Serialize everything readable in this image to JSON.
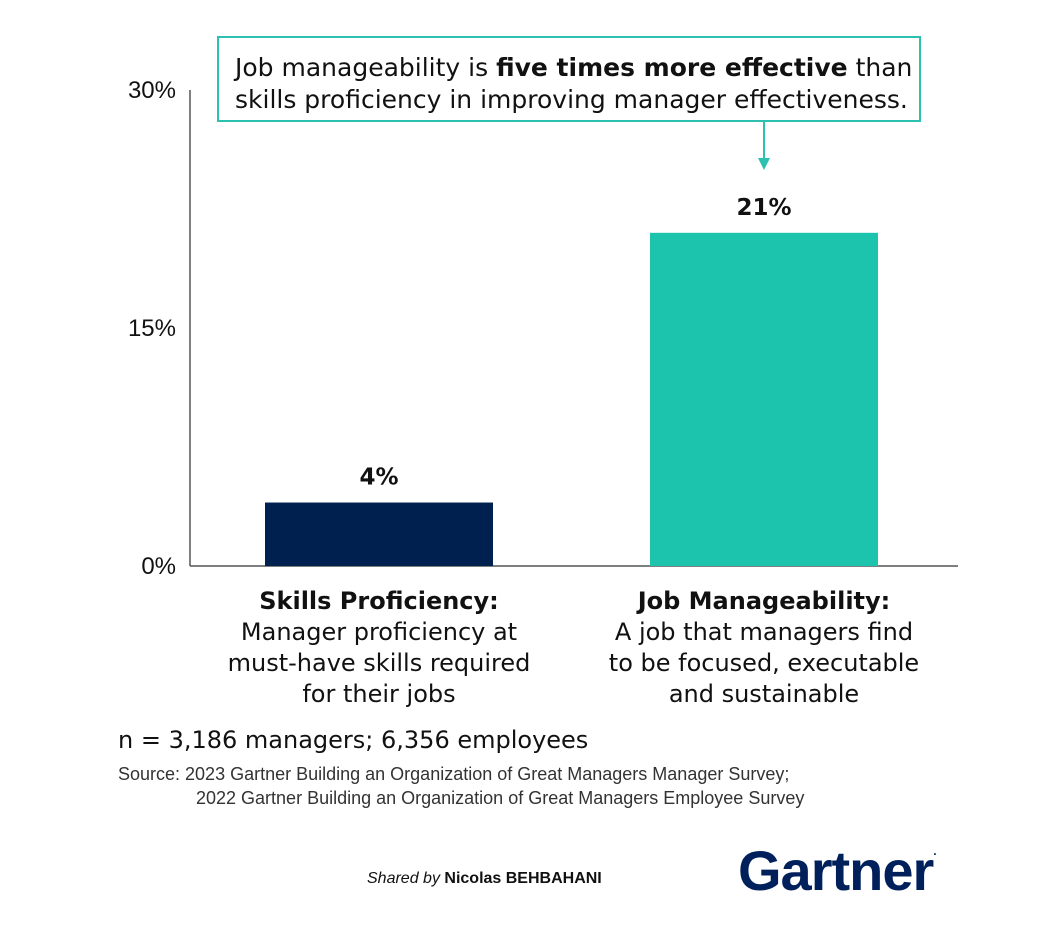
{
  "chart_data": {
    "type": "bar",
    "categories": [
      "Skills Proficiency",
      "Job Manageability"
    ],
    "values": [
      4,
      21
    ],
    "value_labels": [
      "4%",
      "21%"
    ],
    "colors": [
      "#00204f",
      "#1cc4ad"
    ],
    "ylim": [
      0,
      30
    ],
    "yticks": [
      0,
      15,
      30
    ],
    "ytick_labels": [
      "0%",
      "15%",
      "30%"
    ],
    "category_details": [
      {
        "title": "Skills Proficiency:",
        "description": "Manager proficiency at\nmust-have skills required\nfor their jobs"
      },
      {
        "title": "Job Manageability:",
        "description": "A job that managers find\nto be focused, executable\nand sustainable"
      }
    ],
    "annotation": {
      "prefix": "Job manageability is ",
      "bold": "five times more effective",
      "suffix": " than",
      "line2": "skills proficiency in improving manager effectiveness."
    }
  },
  "sample_note": "n = 3,186 managers; 6,356 employees",
  "source": {
    "line1": "Source: 2023 Gartner Building an Organization of Great Managers Manager Survey;",
    "line2": "2022 Gartner Building an Organization of Great Managers Employee Survey"
  },
  "footer": {
    "shared_by_prefix": "Shared by",
    "shared_by_name": "Nicolas BEHBAHANI",
    "logo_text": "Gartner",
    "logo_mark": "."
  },
  "accent_color": "#2bc0b0",
  "brand_color": "#00205b"
}
